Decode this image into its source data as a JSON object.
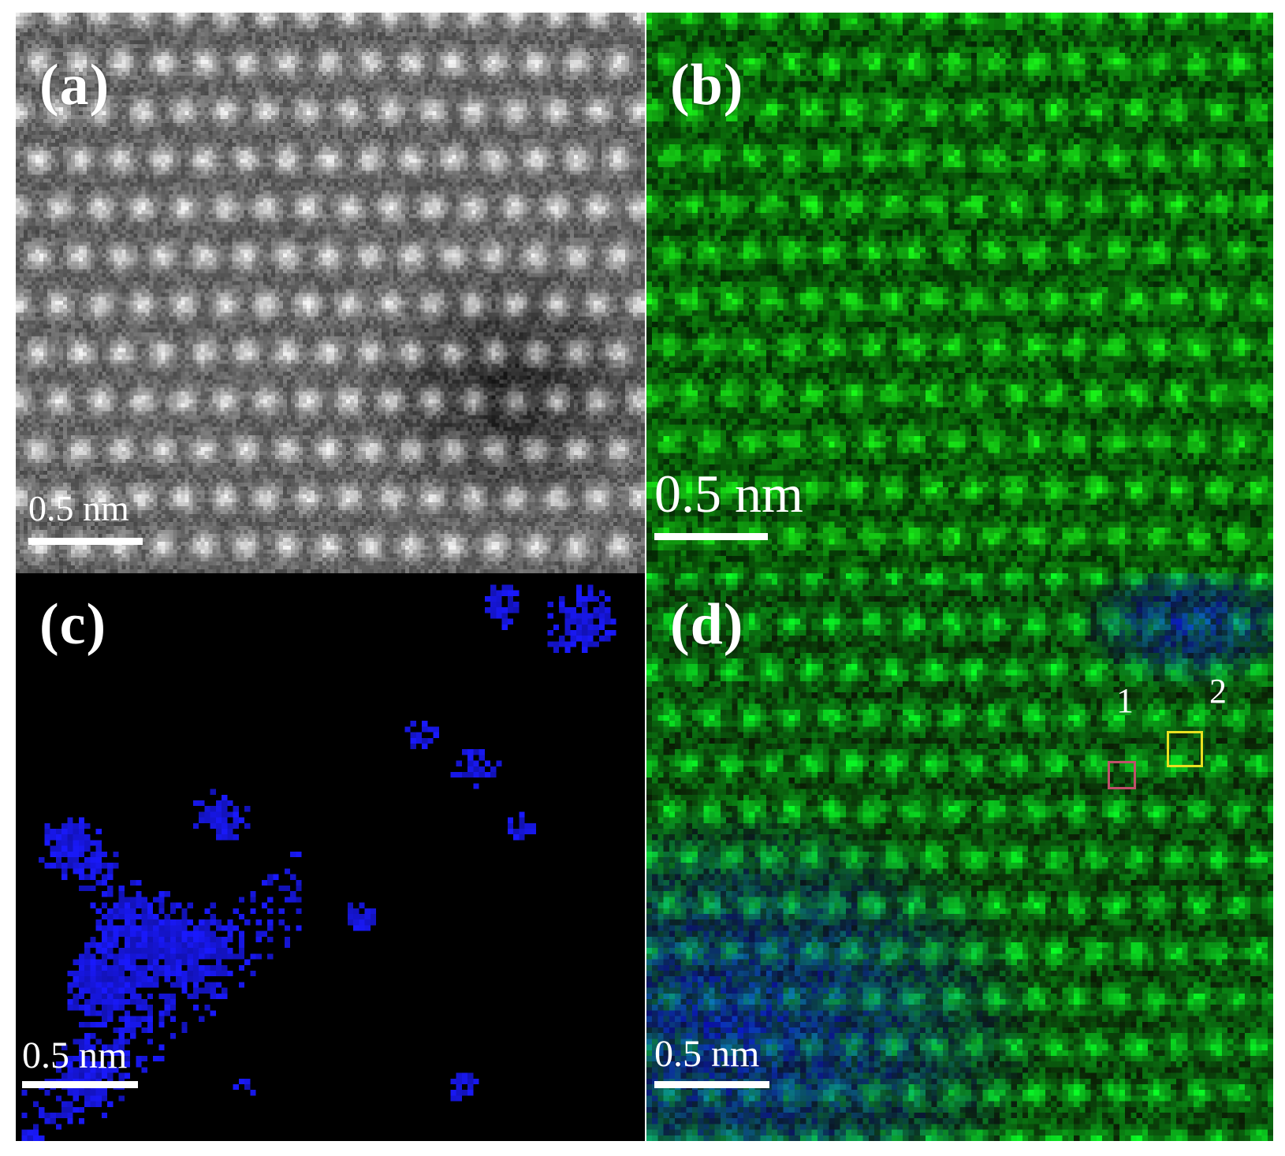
{
  "panels": {
    "a": {
      "label": "(a)",
      "scale": "0.5 nm"
    },
    "b": {
      "label": "(b)",
      "scale": "0.5 nm"
    },
    "c": {
      "label": "(c)",
      "scale": "0.5 nm"
    },
    "d": {
      "label": "(d)",
      "scale": "0.5 nm",
      "markers": [
        {
          "label": "1",
          "color": "#c0506a"
        },
        {
          "label": "2",
          "color": "#e8e020"
        }
      ]
    }
  },
  "colors": {
    "background": "#ffffff",
    "text": "#ffffff",
    "haadf": "#c8c8c8",
    "map_green": "#20d020",
    "map_blue": "#1a1aff"
  }
}
